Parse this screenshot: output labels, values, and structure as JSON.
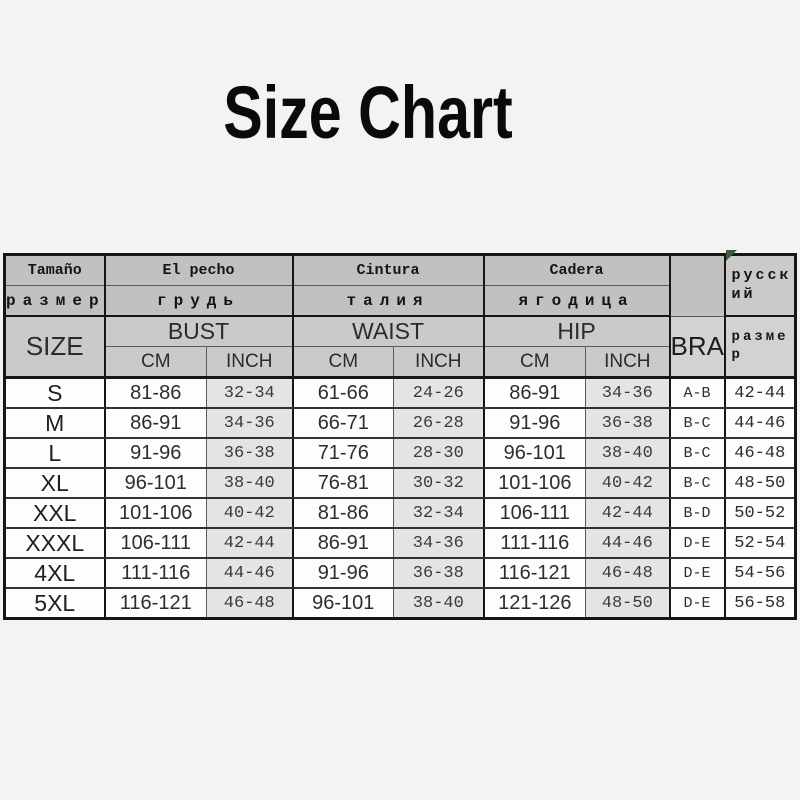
{
  "title": "Size Chart",
  "table": {
    "header": {
      "tamano": "Tamaño",
      "el_pecho": "El pecho",
      "cintura": "Cintura",
      "cadera": "Cadera",
      "russian": "русский",
      "razmer": "размер",
      "grud": "грудь",
      "taliya": "талия",
      "yagoditsa": "ягодица",
      "size": "SIZE",
      "bust": "BUST",
      "waist": "WAIST",
      "hip": "HIP",
      "bra": "BRA",
      "razmer_rus": "размер",
      "cm": "CM",
      "inch": "INCH"
    }
  },
  "chart_data": {
    "type": "table",
    "title": "Size Chart",
    "columns": [
      "SIZE",
      "BUST CM",
      "BUST INCH",
      "WAIST CM",
      "WAIST INCH",
      "HIP CM",
      "HIP INCH",
      "BRA",
      "русский размер"
    ],
    "rows": [
      [
        "S",
        "81-86",
        "32-34",
        "61-66",
        "24-26",
        "86-91",
        "34-36",
        "A-B",
        "42-44"
      ],
      [
        "M",
        "86-91",
        "34-36",
        "66-71",
        "26-28",
        "91-96",
        "36-38",
        "B-C",
        "44-46"
      ],
      [
        "L",
        "91-96",
        "36-38",
        "71-76",
        "28-30",
        "96-101",
        "38-40",
        "B-C",
        "46-48"
      ],
      [
        "XL",
        "96-101",
        "38-40",
        "76-81",
        "30-32",
        "101-106",
        "40-42",
        "B-C",
        "48-50"
      ],
      [
        "XXL",
        "101-106",
        "40-42",
        "81-86",
        "32-34",
        "106-111",
        "42-44",
        "B-D",
        "50-52"
      ],
      [
        "XXXL",
        "106-111",
        "42-44",
        "86-91",
        "34-36",
        "111-116",
        "44-46",
        "D-E",
        "52-54"
      ],
      [
        "4XL",
        "111-116",
        "44-46",
        "91-96",
        "36-38",
        "116-121",
        "46-48",
        "D-E",
        "54-56"
      ],
      [
        "5XL",
        "116-121",
        "46-48",
        "96-101",
        "38-40",
        "121-126",
        "48-50",
        "D-E",
        "56-58"
      ]
    ]
  },
  "colors": {
    "page_background": "#f4f3f1",
    "header_gray_dark": "#c2c1bf",
    "header_gray": "#cbcac8",
    "header_gray_light": "#d3d2d0",
    "inch_cell_background": "#e5e4e2",
    "white_cell_background": "#fdfdfc",
    "border_dark": "#161616",
    "border_thin": "#5a5a5a",
    "text": "#141414",
    "green_corner_mark": "#3a5c3a"
  }
}
